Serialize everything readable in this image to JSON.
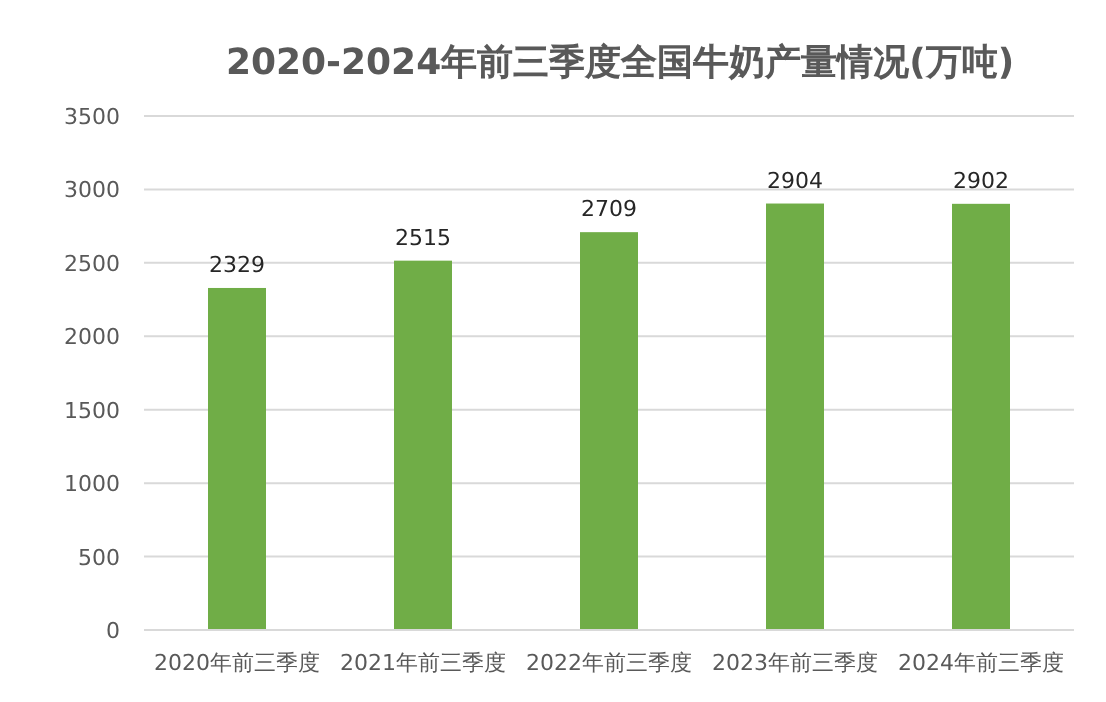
{
  "chart_data": {
    "type": "bar",
    "title": "2020-2024年前三季度全国牛奶产量情况(万吨)",
    "categories": [
      "2020年前三季度",
      "2021年前三季度",
      "2022年前三季度",
      "2023年前三季度",
      "2024年前三季度"
    ],
    "values": [
      2329,
      2515,
      2709,
      2904,
      2902
    ],
    "color": "#70ad47",
    "ylim": [
      0,
      3500
    ],
    "yticks": [
      0,
      500,
      1000,
      1500,
      2000,
      2500,
      3000,
      3500
    ],
    "grid": "y",
    "data_labels": true
  }
}
